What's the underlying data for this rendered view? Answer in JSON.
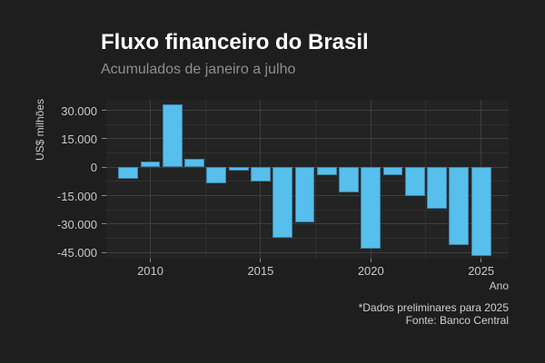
{
  "chart_data": {
    "type": "bar",
    "title": "Fluxo financeiro do Brasil",
    "subtitle": "Acumulados de janeiro a julho",
    "xlabel": "Ano",
    "ylabel": "US$ milhões",
    "caption": [
      "*Dados preliminares para 2025",
      "Fonte: Banco Central"
    ],
    "categories": [
      2009,
      2010,
      2011,
      2012,
      2013,
      2014,
      2015,
      2016,
      2017,
      2018,
      2019,
      2020,
      2021,
      2022,
      2023,
      2024,
      2025
    ],
    "values": [
      -6000,
      3000,
      33000,
      4500,
      -8500,
      -2000,
      -7500,
      -37000,
      -29000,
      -4000,
      -13500,
      -43000,
      -4000,
      -15000,
      -22000,
      -41000,
      -47000
    ],
    "y_ticks": {
      "values": [
        30000,
        15000,
        0,
        -15000,
        -30000,
        -45000
      ],
      "labels": [
        "30.000",
        "15.000",
        "0",
        "-15.000",
        "-30.000",
        "-45.000"
      ]
    },
    "y_minor_ticks": [
      22500,
      7500,
      -7500,
      -22500,
      -37500
    ],
    "x_ticks": {
      "values": [
        2010,
        2015,
        2020,
        2025
      ],
      "labels": [
        "2010",
        "2015",
        "2020",
        "2025"
      ]
    },
    "x_minor_ticks": [
      2012.5,
      2017.5,
      2022.5
    ],
    "xlim": [
      2008.0,
      2026.25
    ],
    "ylim": [
      -48250,
      35600
    ],
    "bar_width": 0.9,
    "grid": true,
    "legend": "none",
    "colors": {
      "background": "#1E1E1E",
      "panel": "#232323",
      "bar_fill": "#56BFEB",
      "bar_edge": "#3D85AD",
      "grid_major": "#3E3E3E",
      "grid_minor": "#303030",
      "title_text": "#FFFFFF",
      "subtitle_text": "#8F8F8F",
      "tick_text": "#C9C9C9",
      "caption_text": "#CFCFCF"
    }
  }
}
